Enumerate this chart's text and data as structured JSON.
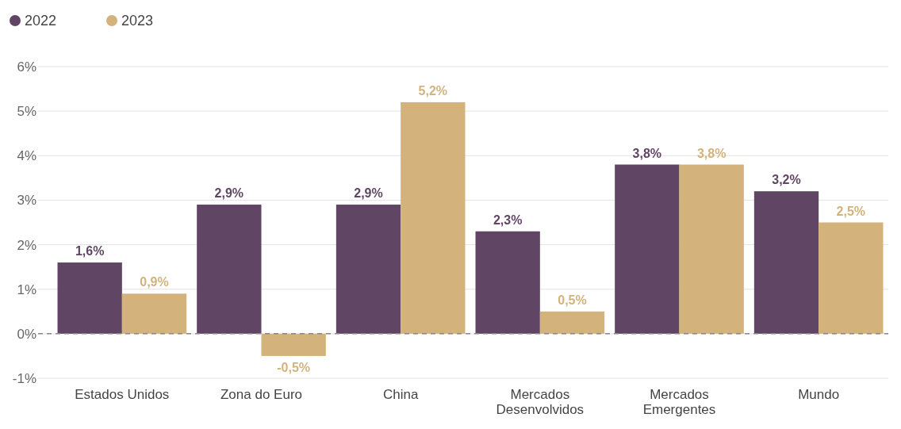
{
  "chart_data": {
    "type": "bar",
    "categories": [
      "Estados Unidos",
      "Zona do Euro",
      "China",
      "Mercados Desenvolvidos",
      "Mercados Emergentes",
      "Mundo"
    ],
    "series": [
      {
        "name": "2022",
        "color": "#604564",
        "values": [
          1.6,
          2.9,
          2.9,
          2.3,
          3.8,
          3.2
        ],
        "value_labels": [
          "1,6%",
          "2,9%",
          "2,9%",
          "2,3%",
          "3,8%",
          "3,2%"
        ]
      },
      {
        "name": "2023",
        "color": "#d3b37b",
        "values": [
          0.9,
          -0.5,
          5.2,
          0.5,
          3.8,
          2.5
        ],
        "value_labels": [
          "0,9%",
          "-0,5%",
          "5,2%",
          "0,5%",
          "3,8%",
          "2,5%"
        ]
      }
    ],
    "ylim": [
      -1,
      6
    ],
    "yticks": [
      {
        "value": -1,
        "label": "-1%"
      },
      {
        "value": 0,
        "label": "0%"
      },
      {
        "value": 1,
        "label": "1%"
      },
      {
        "value": 2,
        "label": "2%"
      },
      {
        "value": 3,
        "label": "3%"
      },
      {
        "value": 4,
        "label": "4%"
      },
      {
        "value": 5,
        "label": "5%"
      },
      {
        "value": 6,
        "label": "6%"
      }
    ],
    "grid": "y",
    "legend": "top left",
    "ref_lines": [
      {
        "axis": "y",
        "value": 0,
        "line_style": "dashed",
        "color": "#888888"
      }
    ]
  }
}
